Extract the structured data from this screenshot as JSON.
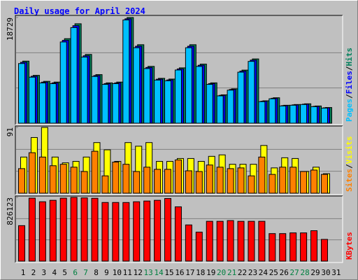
{
  "chart_data": {
    "type": "bar",
    "title": "Daily usage for April 2024",
    "categories": [
      "1",
      "2",
      "3",
      "4",
      "5",
      "6",
      "7",
      "8",
      "9",
      "10",
      "11",
      "12",
      "13",
      "14",
      "15",
      "16",
      "17",
      "18",
      "19",
      "20",
      "21",
      "22",
      "23",
      "24",
      "25",
      "26",
      "27",
      "28",
      "29",
      "30",
      "31"
    ],
    "category_colors": [
      "#000000",
      "#000000",
      "#000000",
      "#000000",
      "#000000",
      "#008040",
      "#008040",
      "#000000",
      "#000000",
      "#000000",
      "#000000",
      "#000000",
      "#008040",
      "#008040",
      "#000000",
      "#000000",
      "#000000",
      "#000000",
      "#000000",
      "#008040",
      "#008040",
      "#000000",
      "#000000",
      "#000000",
      "#000000",
      "#000000",
      "#008040",
      "#008040",
      "#000000",
      "#000000",
      "#000000"
    ],
    "legend_separator": "/",
    "panels": [
      {
        "ylim": [
          0,
          18729
        ],
        "yticks": [
          18729
        ],
        "grid_divisions": 3,
        "series": [
          {
            "name": "Hits",
            "color": "#00805c",
            "values": [
              11000,
              8480,
              7420,
              7290,
              14980,
              17620,
              12190,
              8610,
              7150,
              7290,
              18729,
              13910,
              10070,
              7950,
              7820,
              9810,
              13910,
              10470,
              7150,
              5030,
              6090,
              9410,
              11390,
              3970,
              4510,
              3180,
              3310,
              3440,
              3050,
              2780,
              null
            ]
          },
          {
            "name": "Files",
            "color": "#0000ff",
            "values": [
              10790,
              8320,
              7280,
              7150,
              14690,
              17280,
              11950,
              8450,
              7020,
              7150,
              18500,
              13640,
              9880,
              7800,
              7670,
              9620,
              13640,
              10270,
              7020,
              4940,
              5980,
              9230,
              11180,
              3900,
              4420,
              3120,
              3250,
              3380,
              2990,
              2730,
              null
            ]
          },
          {
            "name": "Pages",
            "color": "#00c0ff",
            "values": [
              10574,
              8154,
              7134,
              7007,
              14396,
              16944,
              11721,
              8281,
              6880,
              7007,
              18300,
              13377,
              9682,
              7644,
              7517,
              9428,
              13377,
              10065,
              6880,
              4841,
              5860,
              9045,
              10956,
              3822,
              4332,
              3058,
              3185,
              3312,
              2930,
              2675,
              null
            ]
          }
        ]
      },
      {
        "ylim": [
          0,
          91
        ],
        "yticks": [
          91
        ],
        "grid_divisions": 3,
        "series": [
          {
            "name": "Visits",
            "color": "#ffff00",
            "values": [
              50,
              77,
              91,
              50,
              42,
              44,
              50,
              70,
              60,
              44,
              70,
              65,
              70,
              44,
              44,
              48,
              48,
              44,
              51,
              53,
              40,
              40,
              40,
              66,
              35,
              49,
              48,
              30,
              36,
              27,
              null
            ]
          },
          {
            "name": "Sites",
            "color": "#ff8000",
            "values": [
              34,
              56,
              50,
              38,
              40,
              36,
              30,
              58,
              24,
              43,
              40,
              30,
              36,
              33,
              33,
              46,
              31,
              30,
              39,
              36,
              34,
              35,
              24,
              50,
              26,
              36,
              36,
              30,
              32,
              26,
              null
            ]
          }
        ]
      },
      {
        "ylim": [
          0,
          826123
        ],
        "yticks": [
          826123
        ],
        "grid_divisions": 3,
        "series": [
          {
            "name": "KBytes",
            "color": "#ff0000",
            "values": [
              460012,
              816756,
              769816,
              788592,
              816756,
              826123,
              820000,
              815000,
              760428,
              760428,
              760000,
              769816,
              779204,
              788592,
              812000,
              704100,
              469400,
              375520,
              516340,
              516340,
              525728,
              516000,
              516340,
              516340,
              356744,
              356744,
              366132,
              366132,
              394296,
              281640,
              null
            ]
          }
        ]
      }
    ]
  }
}
